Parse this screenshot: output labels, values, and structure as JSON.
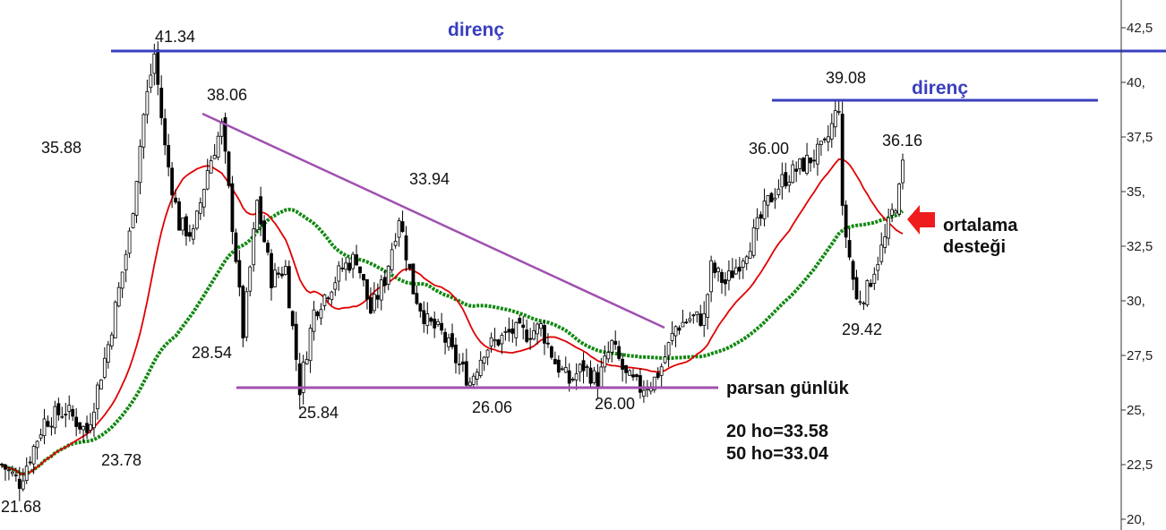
{
  "chart_data": {
    "type": "candlestick",
    "title": "parsan günlük",
    "yaxis": {
      "min": 20,
      "max": 42.5,
      "ticks": [
        "42,5",
        "40,",
        "37,5",
        "35,",
        "32,5",
        "30,",
        "27,5",
        "25,",
        "22,5",
        "20,"
      ],
      "tick_values": [
        42.5,
        40,
        37.5,
        35,
        32.5,
        30,
        27.5,
        25,
        22.5,
        20
      ],
      "position": "right"
    },
    "price_labels": [
      "41.34",
      "38.06",
      "35.88",
      "33.94",
      "28.54",
      "23.78",
      "21.68",
      "25.84",
      "26.06",
      "26.00",
      "36.00",
      "39.08",
      "36.16",
      "29.42"
    ],
    "lines": {
      "resistance_1": {
        "label": "direnç",
        "value": 41.34
      },
      "resistance_2": {
        "label": "direnç",
        "value": 39.08
      },
      "support": {
        "value": 26.0
      }
    },
    "moving_averages": [
      {
        "name": "20 ho",
        "value": 33.58,
        "color": "#e00000",
        "legend": "20 ho=33.58"
      },
      {
        "name": "50 ho",
        "value": 33.04,
        "color": "#118811",
        "legend": "50 ho=33.04"
      }
    ],
    "annotations": [
      "ortalama",
      "desteği"
    ],
    "colors": {
      "resistance": "#3a3fbf",
      "trend": "#a050b0",
      "arrow": "#ee1c1c",
      "candle": "#000000"
    }
  }
}
